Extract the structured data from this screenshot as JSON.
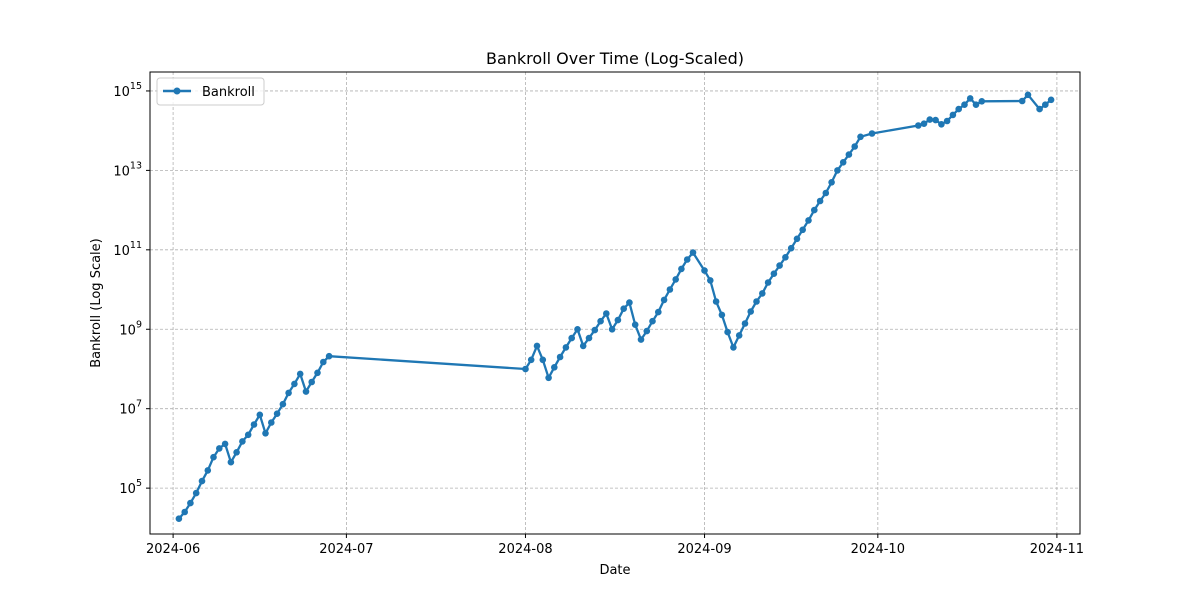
{
  "chart_data": {
    "type": "line",
    "title": "Bankroll Over Time (Log-Scaled)",
    "xlabel": "Date",
    "ylabel": "Bankroll (Log Scale)",
    "x_axis_kind": "date",
    "y_scale": "log",
    "xlim": [
      "2024-05-28",
      "2024-11-05"
    ],
    "ylim": [
      7000,
      3000000000000000.0
    ],
    "x_ticks": [
      "2024-06-01",
      "2024-07-01",
      "2024-08-01",
      "2024-09-01",
      "2024-10-01",
      "2024-11-01"
    ],
    "x_tick_labels": [
      "2024-06",
      "2024-07",
      "2024-08",
      "2024-09",
      "2024-10",
      "2024-11"
    ],
    "y_ticks": [
      100000,
      10000000,
      1000000000,
      100000000000,
      10000000000000,
      1000000000000000
    ],
    "y_tick_labels": [
      {
        "base": "10",
        "exp": "5"
      },
      {
        "base": "10",
        "exp": "7"
      },
      {
        "base": "10",
        "exp": "9"
      },
      {
        "base": "10",
        "exp": "11"
      },
      {
        "base": "10",
        "exp": "13"
      },
      {
        "base": "10",
        "exp": "15"
      }
    ],
    "grid": true,
    "legend_position": "top-left",
    "series": [
      {
        "name": "Bankroll",
        "color": "#1f77b4",
        "points": [
          [
            "2024-06-02",
            17000
          ],
          [
            "2024-06-03",
            25000
          ],
          [
            "2024-06-04",
            42000
          ],
          [
            "2024-06-05",
            75000
          ],
          [
            "2024-06-06",
            150000
          ],
          [
            "2024-06-07",
            280000
          ],
          [
            "2024-06-08",
            600000
          ],
          [
            "2024-06-09",
            1000000
          ],
          [
            "2024-06-10",
            1300000
          ],
          [
            "2024-06-11",
            450000
          ],
          [
            "2024-06-12",
            800000
          ],
          [
            "2024-06-13",
            1500000
          ],
          [
            "2024-06-14",
            2200000
          ],
          [
            "2024-06-15",
            4000000
          ],
          [
            "2024-06-16",
            7000000
          ],
          [
            "2024-06-17",
            2400000
          ],
          [
            "2024-06-18",
            4500000
          ],
          [
            "2024-06-19",
            7500000
          ],
          [
            "2024-06-20",
            13000000
          ],
          [
            "2024-06-21",
            25000000
          ],
          [
            "2024-06-22",
            42000000
          ],
          [
            "2024-06-23",
            75000000
          ],
          [
            "2024-06-24",
            27000000
          ],
          [
            "2024-06-25",
            47000000
          ],
          [
            "2024-06-26",
            80000000
          ],
          [
            "2024-06-27",
            150000000
          ],
          [
            "2024-06-28",
            210000000
          ],
          [
            "2024-08-01",
            100000000
          ],
          [
            "2024-08-02",
            170000000
          ],
          [
            "2024-08-03",
            380000000
          ],
          [
            "2024-08-04",
            170000000
          ],
          [
            "2024-08-05",
            60000000
          ],
          [
            "2024-08-06",
            110000000
          ],
          [
            "2024-08-07",
            200000000
          ],
          [
            "2024-08-08",
            350000000
          ],
          [
            "2024-08-09",
            600000000
          ],
          [
            "2024-08-10",
            1000000000
          ],
          [
            "2024-08-11",
            380000000
          ],
          [
            "2024-08-12",
            600000000
          ],
          [
            "2024-08-13",
            950000000
          ],
          [
            "2024-08-14",
            1600000000
          ],
          [
            "2024-08-15",
            2500000000
          ],
          [
            "2024-08-16",
            1000000000
          ],
          [
            "2024-08-17",
            1700000000
          ],
          [
            "2024-08-18",
            3300000000
          ],
          [
            "2024-08-19",
            4700000000
          ],
          [
            "2024-08-20",
            1300000000
          ],
          [
            "2024-08-21",
            550000000
          ],
          [
            "2024-08-22",
            900000000
          ],
          [
            "2024-08-23",
            1600000000
          ],
          [
            "2024-08-24",
            2700000000
          ],
          [
            "2024-08-25",
            5500000000
          ],
          [
            "2024-08-26",
            10000000000
          ],
          [
            "2024-08-27",
            18000000000
          ],
          [
            "2024-08-28",
            33000000000
          ],
          [
            "2024-08-29",
            57000000000
          ],
          [
            "2024-08-30",
            85000000000
          ],
          [
            "2024-09-01",
            30000000000
          ],
          [
            "2024-09-02",
            17000000000
          ],
          [
            "2024-09-03",
            5000000000
          ],
          [
            "2024-09-04",
            2300000000
          ],
          [
            "2024-09-05",
            850000000
          ],
          [
            "2024-09-06",
            350000000
          ],
          [
            "2024-09-07",
            700000000
          ],
          [
            "2024-09-08",
            1400000000
          ],
          [
            "2024-09-09",
            2800000000
          ],
          [
            "2024-09-10",
            5000000000
          ],
          [
            "2024-09-11",
            8000000000
          ],
          [
            "2024-09-12",
            15000000000
          ],
          [
            "2024-09-13",
            25000000000
          ],
          [
            "2024-09-14",
            40000000000
          ],
          [
            "2024-09-15",
            65000000000
          ],
          [
            "2024-09-16",
            110000000000
          ],
          [
            "2024-09-17",
            190000000000
          ],
          [
            "2024-09-18",
            320000000000
          ],
          [
            "2024-09-19",
            550000000000
          ],
          [
            "2024-09-20",
            1000000000000
          ],
          [
            "2024-09-21",
            1700000000000
          ],
          [
            "2024-09-22",
            2700000000000
          ],
          [
            "2024-09-23",
            5000000000000
          ],
          [
            "2024-09-24",
            10000000000000
          ],
          [
            "2024-09-25",
            16000000000000
          ],
          [
            "2024-09-26",
            25000000000000
          ],
          [
            "2024-09-27",
            40000000000000
          ],
          [
            "2024-09-28",
            70000000000000
          ],
          [
            "2024-09-30",
            85000000000000
          ],
          [
            "2024-10-08",
            135000000000000
          ],
          [
            "2024-10-09",
            150000000000000
          ],
          [
            "2024-10-10",
            190000000000000
          ],
          [
            "2024-10-11",
            185000000000000
          ],
          [
            "2024-10-12",
            145000000000000
          ],
          [
            "2024-10-13",
            175000000000000
          ],
          [
            "2024-10-14",
            250000000000000
          ],
          [
            "2024-10-15",
            350000000000000
          ],
          [
            "2024-10-16",
            450000000000000
          ],
          [
            "2024-10-17",
            650000000000000
          ],
          [
            "2024-10-18",
            450000000000000
          ],
          [
            "2024-10-19",
            550000000000000
          ],
          [
            "2024-10-26",
            560000000000000
          ],
          [
            "2024-10-27",
            800000000000000
          ],
          [
            "2024-10-29",
            350000000000000
          ],
          [
            "2024-10-30",
            450000000000000
          ],
          [
            "2024-10-31",
            600000000000000
          ]
        ]
      }
    ]
  }
}
